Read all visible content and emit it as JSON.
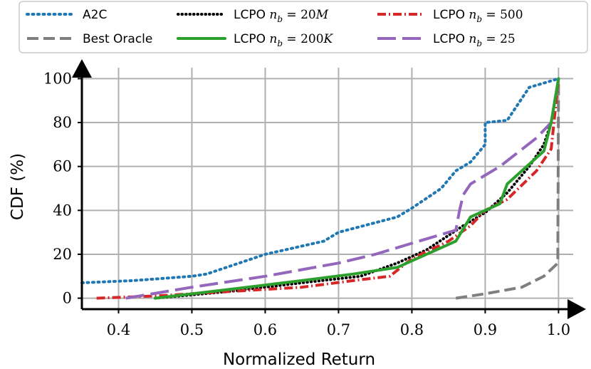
{
  "chart_data": {
    "type": "line",
    "title": "",
    "xlabel": "Normalized Return",
    "ylabel": "CDF (%)",
    "xlim": [
      0.35,
      1.02
    ],
    "ylim": [
      -5,
      105
    ],
    "xticks": [
      0.4,
      0.5,
      0.6,
      0.7,
      0.8,
      0.9,
      1.0
    ],
    "xtick_labels": [
      "0.4",
      "0.5",
      "0.6",
      "0.7",
      "0.8",
      "0.9",
      "1.0"
    ],
    "yticks": [
      0,
      20,
      40,
      60,
      80,
      100
    ],
    "ytick_labels": [
      "0",
      "20",
      "40",
      "60",
      "80",
      "100"
    ],
    "grid": true,
    "legend_position": "top",
    "series": [
      {
        "name": "A2C",
        "legend": {
          "prefix": "A2C",
          "math": "",
          "value": ""
        },
        "color": "#1f77b4",
        "style": "dotted",
        "x": [
          0.35,
          0.42,
          0.5,
          0.52,
          0.6,
          0.68,
          0.7,
          0.78,
          0.8,
          0.84,
          0.86,
          0.88,
          0.9,
          0.9,
          0.93,
          0.96,
          0.98,
          0.99,
          1.0
        ],
        "y": [
          7,
          8,
          10,
          11,
          20,
          26,
          30,
          37,
          41,
          50,
          58,
          62,
          70,
          80,
          81,
          96,
          98,
          99,
          100
        ]
      },
      {
        "name": "Best Oracle",
        "legend": {
          "prefix": "Best Oracle",
          "math": "",
          "value": ""
        },
        "color": "#7f7f7f",
        "style": "dashed",
        "x": [
          0.86,
          0.9,
          0.95,
          0.98,
          0.999,
          1.0
        ],
        "y": [
          0,
          2,
          5,
          10,
          16,
          100
        ]
      },
      {
        "name": "LCPO n_b = 20M",
        "legend": {
          "prefix": "LCPO ",
          "math": "n",
          "sub": "b",
          "eq": " = ",
          "value": "20M"
        },
        "color": "#000000",
        "style": "dotted-dense",
        "x": [
          0.45,
          0.55,
          0.65,
          0.73,
          0.78,
          0.82,
          0.87,
          0.9,
          0.93,
          0.96,
          0.98,
          0.99,
          1.0
        ],
        "y": [
          0,
          3,
          7,
          10,
          16,
          22,
          33,
          39,
          48,
          60,
          70,
          80,
          100
        ]
      },
      {
        "name": "LCPO n_b = 200K",
        "legend": {
          "prefix": "LCPO ",
          "math": "n",
          "sub": "b",
          "eq": " = ",
          "value": "200K"
        },
        "color": "#2ca02c",
        "style": "solid",
        "x": [
          0.45,
          0.55,
          0.65,
          0.72,
          0.78,
          0.8,
          0.86,
          0.88,
          0.92,
          0.93,
          0.95,
          0.98,
          0.99,
          1.0
        ],
        "y": [
          0,
          4,
          8,
          11,
          14,
          17,
          26,
          37,
          43,
          52,
          58,
          67,
          80,
          100
        ]
      },
      {
        "name": "LCPO n_b = 500",
        "legend": {
          "prefix": "LCPO ",
          "math": "n",
          "sub": "b",
          "eq": " = ",
          "value": "500"
        },
        "color": "#d62728",
        "style": "dashdot",
        "x": [
          0.37,
          0.45,
          0.55,
          0.65,
          0.72,
          0.77,
          0.8,
          0.85,
          0.88,
          0.9,
          0.93,
          0.97,
          0.99,
          1.0
        ],
        "y": [
          0,
          1,
          3,
          5,
          8,
          10,
          18,
          26,
          33,
          40,
          45,
          58,
          68,
          100
        ]
      },
      {
        "name": "LCPO n_b = 25",
        "legend": {
          "prefix": "LCPO ",
          "math": "n",
          "sub": "b",
          "eq": " = ",
          "value": "25"
        },
        "color": "#9467bd",
        "style": "longdash",
        "x": [
          0.41,
          0.5,
          0.6,
          0.7,
          0.75,
          0.8,
          0.86,
          0.865,
          0.87,
          0.88,
          0.92,
          0.97,
          0.99,
          1.0
        ],
        "y": [
          0,
          5,
          10,
          16,
          20,
          25,
          31,
          40,
          47,
          52,
          60,
          73,
          80,
          100
        ]
      }
    ]
  }
}
